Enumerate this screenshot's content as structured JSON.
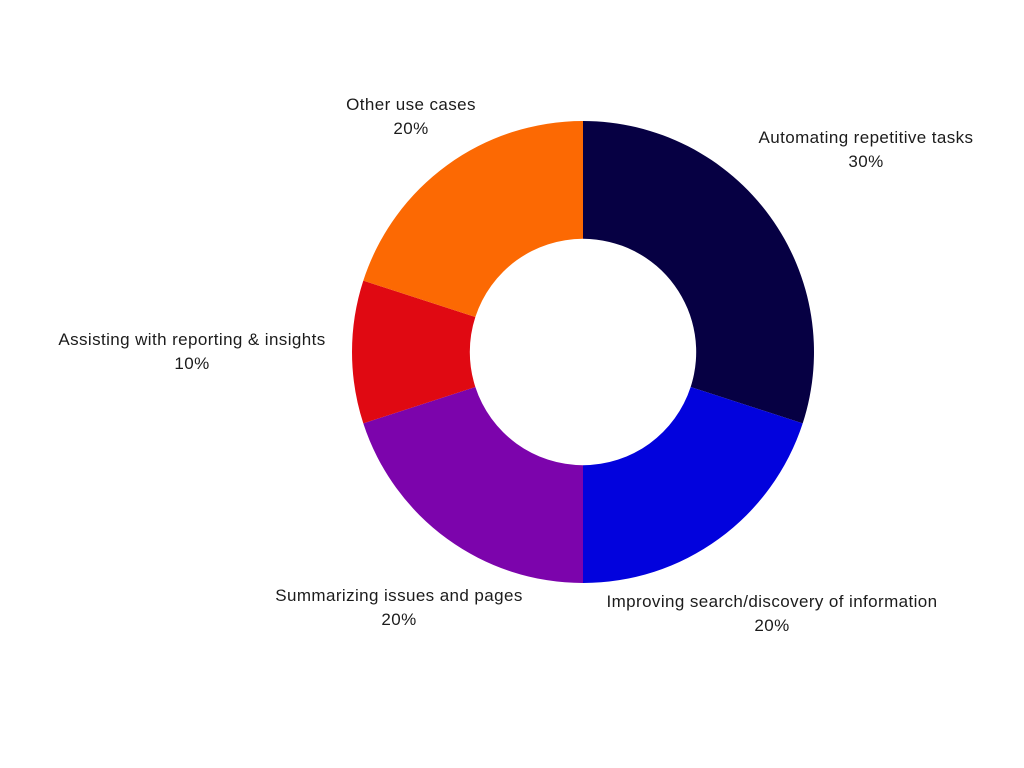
{
  "page": {
    "background": "#ffffff",
    "text_color": "#1c1c1c"
  },
  "chart_data": {
    "type": "pie",
    "subtype": "donut",
    "title": "",
    "legend_position": "none",
    "labels_position": "outside",
    "start_angle_deg": 0,
    "direction": "clockwise",
    "inner_radius_ratio": 0.49,
    "slices": [
      {
        "label": "Automating repetitive tasks",
        "value": 30,
        "value_label": "30%",
        "color": "#060043"
      },
      {
        "label": "Improving search/discovery of information",
        "value": 20,
        "value_label": "20%",
        "color": "#0202DD"
      },
      {
        "label": "Summarizing issues and pages",
        "value": 20,
        "value_label": "20%",
        "color": "#7C04AC"
      },
      {
        "label": "Assisting with reporting & insights",
        "value": 10,
        "value_label": "10%",
        "color": "#E00912"
      },
      {
        "label": "Other use cases",
        "value": 20,
        "value_label": "20%",
        "color": "#FC6903"
      }
    ]
  }
}
